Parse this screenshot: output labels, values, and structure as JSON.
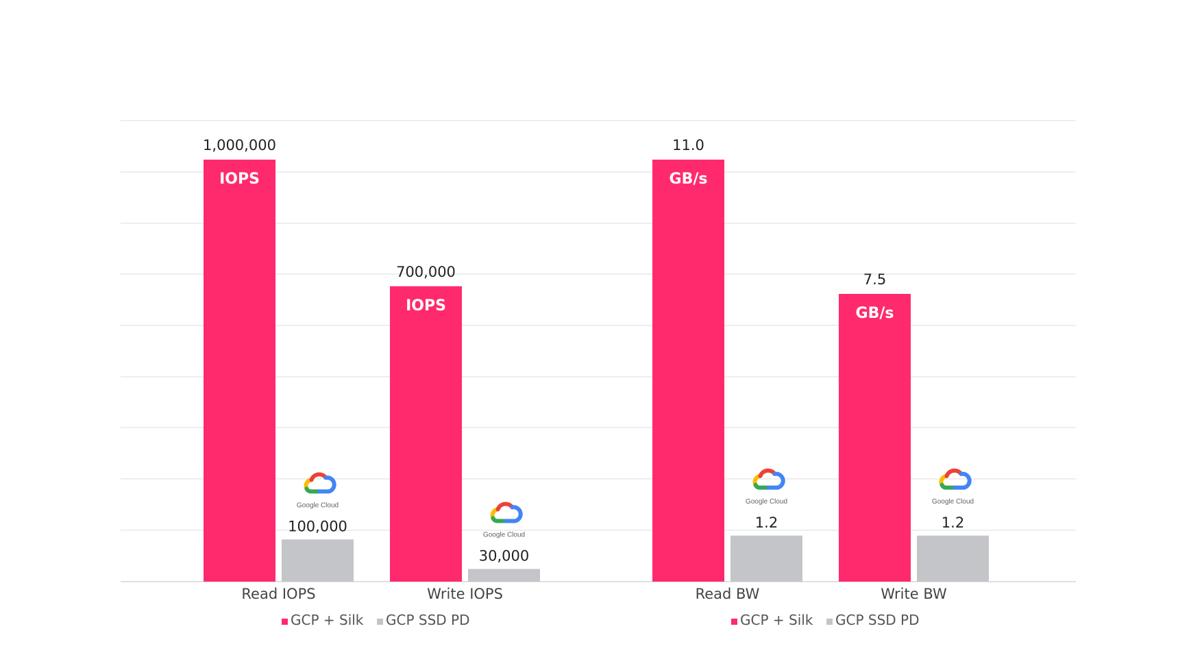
{
  "chart_data": [
    {
      "type": "bar",
      "categories": [
        "Read IOPS",
        "Write IOPS"
      ],
      "series": [
        {
          "name": "GCP + Silk",
          "values": [
            1000000,
            700000
          ],
          "value_labels": [
            "1,000,000",
            "700,000"
          ],
          "unit_label": "IOPS",
          "color": "#ff2a6d"
        },
        {
          "name": "GCP SSD PD",
          "values": [
            100000,
            30000
          ],
          "value_labels": [
            "100,000",
            "30,000"
          ],
          "logo_text": "Google Cloud",
          "logo_icon": "google-cloud-icon",
          "color": "#c4c5c9"
        }
      ],
      "ylim": [
        0,
        1000000
      ],
      "grid": true,
      "legend": "bottom"
    },
    {
      "type": "bar",
      "categories": [
        "Read BW",
        "Write BW"
      ],
      "series": [
        {
          "name": "GCP + Silk",
          "values": [
            11.0,
            7.5
          ],
          "value_labels": [
            "11.0",
            "7.5"
          ],
          "unit_label": "GB/s",
          "color": "#ff2a6d"
        },
        {
          "name": "GCP SSD PD",
          "values": [
            1.2,
            1.2
          ],
          "value_labels": [
            "1.2",
            "1.2"
          ],
          "logo_text": "Google Cloud",
          "logo_icon": "google-cloud-icon",
          "color": "#c4c5c9"
        }
      ],
      "ylim": [
        0,
        11.0
      ],
      "grid": true,
      "legend": "bottom"
    }
  ]
}
